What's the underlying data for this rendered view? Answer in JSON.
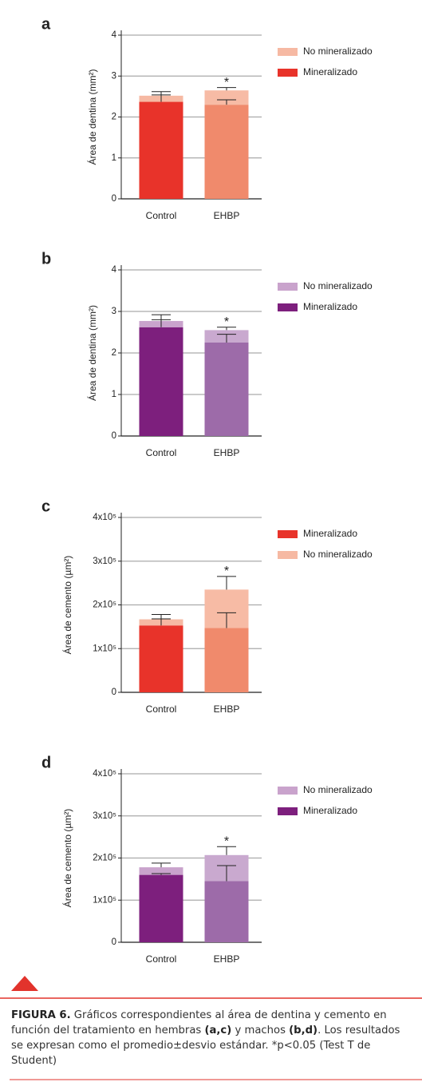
{
  "chart_data": [
    {
      "type": "bar",
      "stacked": true,
      "label": "a",
      "ylabel": "Área de dentina (mm²)",
      "categories": [
        "Control",
        "EHBP"
      ],
      "series": [
        {
          "name": "Mineralizado",
          "color": "#e8332a",
          "colors": [
            "#e8332a",
            "#f08a6c"
          ],
          "values": [
            2.37,
            2.3
          ],
          "errors": [
            0.17,
            0.12
          ]
        },
        {
          "name": "No mineralizado",
          "color": "#f6b9a3",
          "colors": [
            "#f6b9a3",
            "#f7bba5"
          ],
          "values": [
            0.15,
            0.35
          ],
          "errors": [
            0.1,
            0.07
          ]
        }
      ],
      "legend_reversed": true,
      "annotation": "*",
      "ylim": [
        0,
        4
      ],
      "yticks": [
        0,
        1,
        2,
        3,
        4
      ],
      "grid": true
    },
    {
      "type": "bar",
      "stacked": true,
      "label": "b",
      "ylabel": "Área de dentina (mm²)",
      "categories": [
        "Control",
        "EHBP"
      ],
      "series": [
        {
          "name": "Mineralizado",
          "color": "#7d1f7d",
          "colors": [
            "#7d1f7d",
            "#9d6ba9"
          ],
          "values": [
            2.62,
            2.25
          ],
          "errors": [
            0.18,
            0.2
          ]
        },
        {
          "name": "No mineralizado",
          "color": "#c9a3cc",
          "colors": [
            "#c9a3cc",
            "#c9a9cf"
          ],
          "values": [
            0.15,
            0.3
          ],
          "errors": [
            0.15,
            0.07
          ]
        }
      ],
      "legend_reversed": true,
      "annotation": "*",
      "ylim": [
        0,
        4
      ],
      "yticks": [
        0,
        1,
        2,
        3,
        4
      ],
      "grid": true
    },
    {
      "type": "bar",
      "stacked": true,
      "label": "c",
      "ylabel": "Área de cemento (µm²)",
      "categories": [
        "Control",
        "EHBP"
      ],
      "series": [
        {
          "name": "Mineralizado",
          "color": "#e8332a",
          "colors": [
            "#e8332a",
            "#f08a6c"
          ],
          "values": [
            153000,
            147000
          ],
          "errors": [
            15000,
            35000
          ]
        },
        {
          "name": "No mineralizado",
          "color": "#f6b9a3",
          "colors": [
            "#f6b9a3",
            "#f7bba5"
          ],
          "values": [
            14000,
            88000
          ],
          "errors": [
            11000,
            30000
          ]
        }
      ],
      "legend_reversed": false,
      "annotation": "*",
      "ylim": [
        0,
        400000
      ],
      "yticks": [
        0,
        {
          "value": 100000,
          "label": "1x10⁵"
        },
        {
          "value": 200000,
          "label": "2x10⁵"
        },
        {
          "value": 300000,
          "label": "3x10⁵"
        },
        {
          "value": 400000,
          "label": "4x10⁵"
        }
      ],
      "grid": true
    },
    {
      "type": "bar",
      "stacked": true,
      "label": "d",
      "ylabel": "Área de cemento (µm²)",
      "categories": [
        "Control",
        "EHBP"
      ],
      "series": [
        {
          "name": "Mineralizado",
          "color": "#7d1f7d",
          "colors": [
            "#7d1f7d",
            "#9d6ba9"
          ],
          "values": [
            160000,
            145000
          ],
          "errors": [
            3000,
            37000
          ]
        },
        {
          "name": "No mineralizado",
          "color": "#c9a3cc",
          "colors": [
            "#c9a3cc",
            "#c9a9cf"
          ],
          "values": [
            18000,
            62000
          ],
          "errors": [
            10000,
            20000
          ]
        }
      ],
      "legend_reversed": true,
      "annotation": "*",
      "ylim": [
        0,
        400000
      ],
      "yticks": [
        0,
        {
          "value": 100000,
          "label": "1x10⁵"
        },
        {
          "value": 200000,
          "label": "2x10⁵"
        },
        {
          "value": 300000,
          "label": "3x10⁵"
        },
        {
          "value": 400000,
          "label": "4x10⁵"
        }
      ],
      "grid": true
    }
  ],
  "caption": [
    "FIGURA 6.",
    "Gráficos correspondientes al área de dentina y cemento en función del tratamiento en hembras ",
    "(a,c)",
    " y machos ",
    "(b,d)",
    ". Los resultados se expresan como el promedio±desvio estándar. *p<0.05 (Test T de Student)"
  ]
}
